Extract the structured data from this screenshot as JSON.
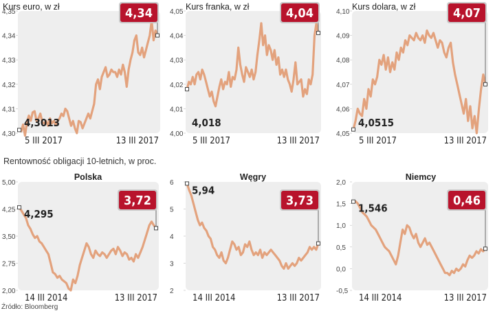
{
  "section_title": "Rentowność obligacji 10-letnich, w proc.",
  "source": "Źródło: Bloomberg",
  "chart_data": [
    {
      "type": "line",
      "title": "Kurs euro, w zł",
      "subtitle": "",
      "x_start_label": "5 III 2017",
      "x_end_label": "13 III 2017",
      "ylim": [
        4.3,
        4.35
      ],
      "yticks": [
        4.3,
        4.31,
        4.32,
        4.33,
        4.34,
        4.35
      ],
      "ytick_labels": [
        "4,30",
        "4,31",
        "4,32",
        "4,33",
        "4,34",
        "4,35"
      ],
      "start_label": "4,3013",
      "end_label": "4,34",
      "series": [
        {
          "values": [
            4.3013,
            4.3008,
            4.3035,
            4.299,
            4.3045,
            4.3072,
            4.3051,
            4.3085,
            4.309,
            4.305,
            4.306,
            4.308,
            4.3045,
            4.304,
            4.305,
            4.303,
            4.306,
            4.304,
            4.305,
            4.3035,
            4.305,
            4.306,
            4.308,
            4.307,
            4.31,
            4.309,
            4.306,
            4.303,
            4.305,
            4.302,
            4.3,
            4.305,
            4.3045,
            4.302,
            4.304,
            4.306,
            4.308,
            4.306,
            4.309,
            4.312,
            4.32,
            4.322,
            4.318,
            4.323,
            4.325,
            4.327,
            4.323,
            4.324,
            4.326,
            4.325,
            4.325,
            4.323,
            4.326,
            4.324,
            4.328,
            4.325,
            4.319,
            4.326,
            4.33,
            4.333,
            4.338,
            4.34,
            4.333,
            4.332,
            4.335,
            4.331,
            4.334,
            4.337,
            4.34,
            4.346,
            4.338,
            4.342,
            4.34
          ]
        }
      ]
    },
    {
      "type": "line",
      "title": "Kurs franka, w zł",
      "subtitle": "",
      "x_start_label": "5 III 2017",
      "x_end_label": "13 III 2017",
      "ylim": [
        4.0,
        4.05
      ],
      "yticks": [
        4.0,
        4.01,
        4.02,
        4.03,
        4.04,
        4.05
      ],
      "ytick_labels": [
        "4,00",
        "4,01",
        "4,02",
        "4,03",
        "4,04",
        "4,05"
      ],
      "start_label": "4,018",
      "end_label": "4,04",
      "series": [
        {
          "values": [
            4.018,
            4.021,
            4.02,
            4.023,
            4.02,
            4.024,
            4.025,
            4.022,
            4.026,
            4.024,
            4.021,
            4.018,
            4.015,
            4.017,
            4.013,
            4.011,
            4.015,
            4.019,
            4.022,
            4.018,
            4.021,
            4.02,
            4.025,
            4.019,
            4.023,
            4.022,
            4.026,
            4.035,
            4.028,
            4.024,
            4.021,
            4.027,
            4.025,
            4.023,
            4.026,
            4.022,
            4.025,
            4.032,
            4.038,
            4.045,
            4.036,
            4.04,
            4.032,
            4.036,
            4.034,
            4.03,
            4.034,
            4.028,
            4.031,
            4.024,
            4.026,
            4.023,
            4.026,
            4.022,
            4.02,
            4.017,
            4.022,
            4.029,
            4.02,
            4.021,
            4.022,
            4.015,
            4.018,
            4.016,
            4.022,
            4.02,
            4.024,
            4.04,
            4.045,
            4.041
          ]
        }
      ]
    },
    {
      "type": "line",
      "title": "Kurs dolara, w zł",
      "subtitle": "",
      "x_start_label": "5 III 2017",
      "x_end_label": "13 III 2017",
      "ylim": [
        4.05,
        4.1
      ],
      "yticks": [
        4.05,
        4.06,
        4.07,
        4.08,
        4.09,
        4.1
      ],
      "ytick_labels": [
        "4,05",
        "4,06",
        "4,07",
        "4,08",
        "4,09",
        "4,10"
      ],
      "start_label": "4,0515",
      "end_label": "4,07",
      "series": [
        {
          "values": [
            4.0515,
            4.055,
            4.06,
            4.058,
            4.057,
            4.064,
            4.06,
            4.068,
            4.065,
            4.072,
            4.07,
            4.073,
            4.08,
            4.078,
            4.082,
            4.076,
            4.081,
            4.075,
            4.079,
            4.076,
            4.083,
            4.08,
            4.085,
            4.083,
            4.088,
            4.086,
            4.09,
            4.089,
            4.088,
            4.091,
            4.089,
            4.088,
            4.09,
            4.087,
            4.092,
            4.09,
            4.089,
            4.091,
            4.088,
            4.085,
            4.088,
            4.087,
            4.083,
            4.081,
            4.085,
            4.087,
            4.079,
            4.074,
            4.07,
            4.066,
            4.062,
            4.058,
            4.064,
            4.055,
            4.061,
            4.052,
            4.057,
            4.05,
            4.06,
            4.068,
            4.074,
            4.07
          ]
        }
      ]
    },
    {
      "type": "line",
      "title": "Polska",
      "subtitle": "",
      "x_start_label": "14 III 2014",
      "x_end_label": "13 III 2017",
      "ylim": [
        2.0,
        5.0
      ],
      "yticks": [
        2.0,
        2.75,
        3.5,
        4.25,
        5.0
      ],
      "ytick_labels": [
        "2,00",
        "2,75",
        "3,50",
        "4,25",
        "5,00"
      ],
      "start_label": "4,295",
      "end_label": "3,72",
      "series": [
        {
          "values": [
            4.295,
            4.2,
            4.1,
            4.0,
            3.8,
            3.7,
            3.55,
            3.45,
            3.5,
            3.35,
            3.3,
            3.2,
            3.1,
            3.0,
            2.75,
            2.5,
            2.45,
            2.35,
            2.4,
            2.3,
            2.25,
            2.2,
            2.05,
            2.0,
            2.3,
            2.2,
            2.4,
            2.7,
            2.9,
            3.1,
            3.3,
            3.2,
            3.0,
            2.9,
            3.1,
            3.0,
            2.95,
            3.05,
            3.0,
            2.9,
            3.0,
            3.1,
            3.15,
            3.0,
            3.2,
            3.1,
            2.95,
            3.05,
            3.0,
            2.85,
            2.9,
            2.8,
            3.0,
            2.9,
            3.05,
            3.2,
            3.4,
            3.6,
            3.8,
            3.9,
            3.8,
            3.72
          ]
        }
      ]
    },
    {
      "type": "line",
      "title": "Węgry",
      "subtitle": "",
      "x_start_label": "14 III 2014",
      "x_end_label": "13 III 2017",
      "ylim": [
        2,
        6
      ],
      "yticks": [
        2,
        3,
        4,
        5,
        6
      ],
      "ytick_labels": [
        "2",
        "3",
        "4",
        "5",
        "6"
      ],
      "start_label": "5,94",
      "end_label": "3,73",
      "series": [
        {
          "values": [
            5.94,
            5.7,
            5.5,
            5.2,
            4.9,
            4.6,
            4.4,
            4.5,
            4.3,
            4.2,
            4.0,
            3.9,
            3.6,
            3.5,
            3.3,
            3.2,
            3.4,
            3.1,
            3.0,
            3.2,
            3.5,
            3.8,
            3.7,
            3.5,
            3.6,
            3.3,
            3.4,
            3.7,
            3.6,
            3.8,
            3.5,
            3.3,
            3.4,
            3.3,
            3.5,
            3.2,
            3.4,
            3.3,
            3.4,
            3.5,
            3.4,
            3.3,
            3.2,
            3.1,
            2.9,
            2.8,
            3.0,
            2.8,
            2.9,
            3.0,
            2.9,
            3.0,
            3.2,
            3.1,
            3.2,
            3.3,
            3.4,
            3.6,
            3.5,
            3.6,
            3.5,
            3.73
          ]
        }
      ]
    },
    {
      "type": "line",
      "title": "Niemcy",
      "subtitle": "",
      "x_start_label": "14 III 2014",
      "x_end_label": "13 III 2017",
      "ylim": [
        -0.5,
        2.0
      ],
      "yticks": [
        -0.5,
        0.0,
        0.5,
        1.0,
        1.5,
        2.0
      ],
      "ytick_labels": [
        "-0,5",
        "0,0",
        "0,5",
        "1,0",
        "1,5",
        "2,0"
      ],
      "start_label": "1,546",
      "end_label": "0,46",
      "series": [
        {
          "values": [
            1.546,
            1.55,
            1.5,
            1.4,
            1.3,
            1.25,
            1.2,
            1.1,
            1.0,
            0.95,
            0.9,
            0.8,
            0.7,
            0.6,
            0.5,
            0.45,
            0.4,
            0.3,
            0.2,
            0.1,
            0.3,
            0.6,
            0.9,
            0.8,
            1.0,
            0.95,
            0.8,
            0.7,
            0.8,
            0.6,
            0.5,
            0.6,
            0.7,
            0.55,
            0.6,
            0.5,
            0.4,
            0.3,
            0.2,
            0.1,
            0.0,
            -0.1,
            -0.1,
            -0.15,
            -0.05,
            -0.1,
            0.0,
            -0.05,
            0.0,
            0.1,
            0.05,
            0.2,
            0.3,
            0.25,
            0.3,
            0.4,
            0.35,
            0.45,
            0.4,
            0.46
          ]
        }
      ]
    }
  ],
  "colors": {
    "line": "#e3a27d",
    "plot_bg": "#eeeeee",
    "badge": "#b8132c",
    "badge_border": "#c9c9c9",
    "marker": "#444444",
    "text": "#222222"
  }
}
